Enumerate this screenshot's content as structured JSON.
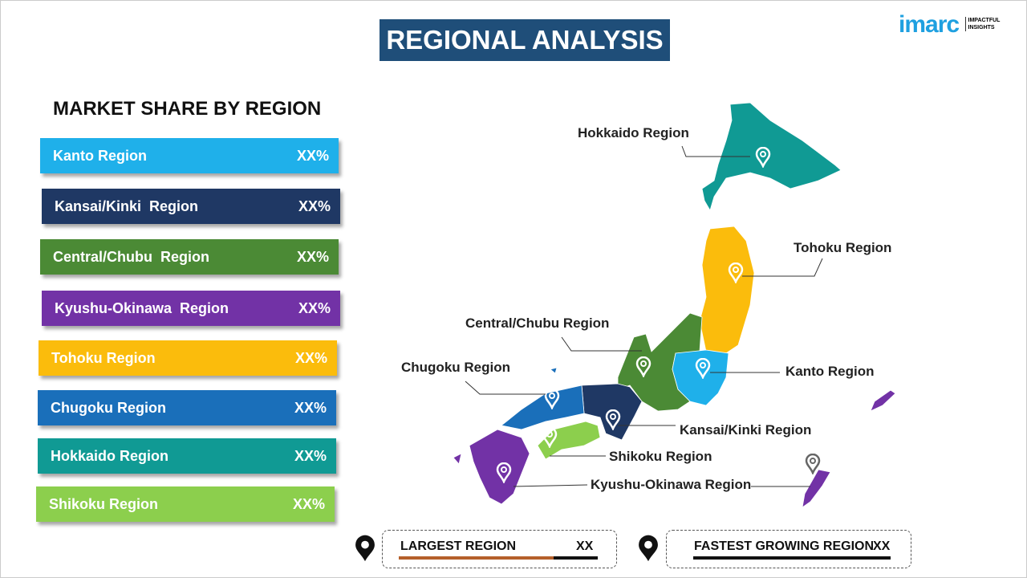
{
  "header": {
    "title": "REGIONAL ANALYSIS"
  },
  "logo": {
    "name": "imarc",
    "tagline": [
      "IMPACTFUL",
      "INSIGHTS"
    ]
  },
  "panel": {
    "title": "MARKET SHARE BY REGION",
    "rows": [
      {
        "label": "Kanto Region",
        "value": "XX%",
        "color": "#1fb0ea"
      },
      {
        "label": "Kansai/Kinki  Region",
        "value": "XX%",
        "color": "#1f3864"
      },
      {
        "label": "Central/Chubu  Region",
        "value": "XX%",
        "color": "#4b8a35"
      },
      {
        "label": "Kyushu-Okinawa  Region",
        "value": "XX%",
        "color": "#7232a6"
      },
      {
        "label": "Tohoku Region",
        "value": "XX%",
        "color": "#fbbc0c"
      },
      {
        "label": "Chugoku Region",
        "value": "XX%",
        "color": "#1a6fba"
      },
      {
        "label": "Hokkaido Region",
        "value": "XX%",
        "color": "#109a94"
      },
      {
        "label": "Shikoku Region",
        "value": "XX%",
        "color": "#8ccf4d"
      }
    ]
  },
  "map": {
    "labels": [
      "Hokkaido Region",
      "Tohoku Region",
      "Central/Chubu Region",
      "Chugoku Region",
      "Kanto Region",
      "Kansai/Kinki Region",
      "Shikoku Region",
      "Kyushu-Okinawa Region"
    ]
  },
  "footer": {
    "largest": {
      "label": "LARGEST REGION",
      "value": "XX"
    },
    "fastest": {
      "label": "FASTEST GROWING REGION",
      "value": "XX"
    }
  }
}
